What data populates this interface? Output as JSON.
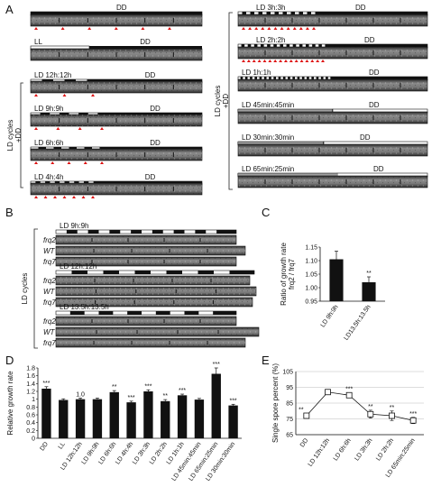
{
  "panels": {
    "A": {
      "letter": "A",
      "side_label_left": "LD cycles\n+DD",
      "side_label_right": "LD cycles\n+DD",
      "left": [
        {
          "light": "",
          "dark": "DD",
          "marks": 6
        },
        {
          "light": "LL",
          "dark": "DD",
          "marks": 0
        },
        {
          "light": "LD 12h:12h",
          "dark": "DD",
          "marks": 3
        },
        {
          "light": "LD 9h:9h",
          "dark": "DD",
          "marks": 4
        },
        {
          "light": "LD 6h:6h",
          "dark": "DD",
          "marks": 5
        },
        {
          "light": "LD 4h:4h",
          "dark": "DD",
          "marks": 7
        }
      ],
      "right": [
        {
          "light": "LD 3h:3h",
          "dark": "DD",
          "marks": 12
        },
        {
          "light": "LD 2h:2h",
          "dark": "DD",
          "marks": 16
        },
        {
          "light": "LD 1h:1h",
          "dark": "DD",
          "marks": 0
        },
        {
          "light": "LD 45min:45min",
          "dark": "DD",
          "marks": 0
        },
        {
          "light": "LD 30min:30min",
          "dark": "DD",
          "marks": 0
        },
        {
          "light": "LD 65min:25min",
          "dark": "DD",
          "marks": 0
        }
      ]
    },
    "B": {
      "letter": "B",
      "side_label": "LD cycles",
      "groups": [
        {
          "title": "LD 9h:9h",
          "strains": [
            "frq2",
            "WT",
            "frq7"
          ]
        },
        {
          "title": "LD 12h:12h",
          "strains": [
            "frq2",
            "WT",
            "frq7"
          ]
        },
        {
          "title": "LD 13.5h:13.5h",
          "strains": [
            "frq2",
            "WT",
            "frq7"
          ]
        }
      ]
    },
    "C": {
      "letter": "C",
      "sig": [
        "",
        "**"
      ]
    },
    "D": {
      "letter": "D",
      "sig": [
        "***",
        "",
        "1.0",
        "",
        "**",
        "***",
        "***",
        "**",
        "***",
        "",
        "***",
        "***"
      ]
    },
    "E": {
      "letter": "E",
      "sig": [
        "**",
        "",
        "***",
        "**",
        "**",
        "***"
      ]
    }
  },
  "chart_data": [
    {
      "panel": "C",
      "type": "bar",
      "categories": [
        "LD 9h:9h",
        "LD13.5h:13.5h"
      ],
      "values": [
        1.105,
        1.02
      ],
      "errors": [
        0.03,
        0.02
      ],
      "ylabel": "Ratio of growth rate\nfrq2 / frq7",
      "ylim": [
        0.95,
        1.15
      ],
      "yticks": [
        "0.95",
        "1.00",
        "1.05",
        "1.10",
        "1.15"
      ],
      "tick_values": [
        0.95,
        1.0,
        1.05,
        1.1,
        1.15
      ],
      "grid": false
    },
    {
      "panel": "D",
      "type": "bar",
      "categories": [
        "DD",
        "LL",
        "LD 12h:12h",
        "LD 9h:9h",
        "LD 6h:6h",
        "LD 4h:4h",
        "LD 3h:3h",
        "LD 2h:2h",
        "LD 1h:1h",
        "LD 45min:45min",
        "LD 65min:25min",
        "LD 30min:30min"
      ],
      "values": [
        1.27,
        0.98,
        1.0,
        1.0,
        1.18,
        0.92,
        1.2,
        0.95,
        1.1,
        0.99,
        1.65,
        0.84
      ],
      "errors": [
        0.05,
        0.03,
        0.03,
        0.03,
        0.04,
        0.03,
        0.04,
        0.04,
        0.03,
        0.03,
        0.15,
        0.03
      ],
      "ylabel": "Relative growth rate",
      "ylim": [
        0,
        1.8
      ],
      "yticks": [
        "0",
        "0.2",
        "0.4",
        "0.6",
        "0.8",
        "1",
        "1.2",
        "1.4",
        "1.6",
        "1.8"
      ],
      "tick_values": [
        0,
        0.2,
        0.4,
        0.6,
        0.8,
        1.0,
        1.2,
        1.4,
        1.6,
        1.8
      ],
      "grid": false
    },
    {
      "panel": "E",
      "type": "line",
      "categories": [
        "DD",
        "LD 12h:12h",
        "LD 6h:6h",
        "LD 3h:3h",
        "LD 2h:2h",
        "LD 65min:25min"
      ],
      "values": [
        77,
        92,
        90,
        78,
        77,
        74
      ],
      "errors": [
        1.5,
        1.5,
        1.5,
        2.5,
        3,
        2
      ],
      "ylabel": "Single spore percent (%)",
      "ylim": [
        65,
        105
      ],
      "yticks": [
        "65",
        "75",
        "85",
        "95",
        "105"
      ],
      "tick_values": [
        65,
        75,
        85,
        95,
        105
      ],
      "grid": true
    }
  ]
}
